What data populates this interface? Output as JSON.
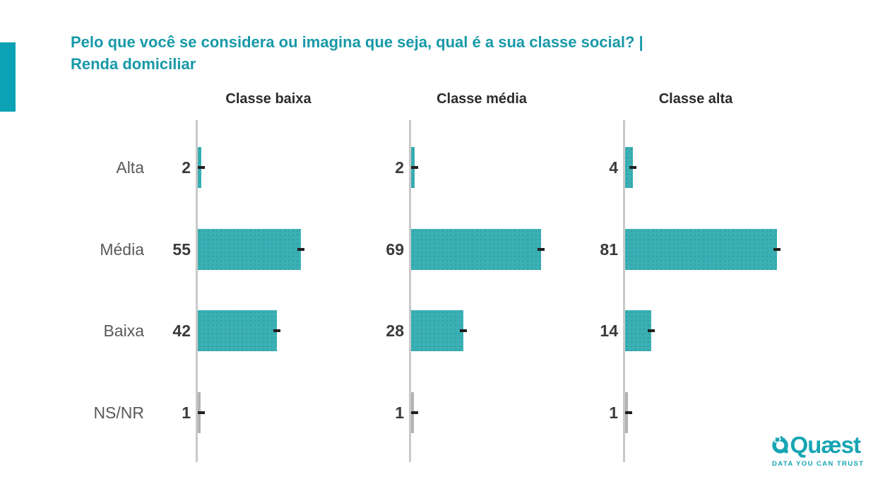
{
  "title": {
    "line1": "Pelo que você se considera ou imagina que seja, qual é a sua classe social? |",
    "line2": "Renda domiciliar"
  },
  "categories": [
    "Alta",
    "Média",
    "Baixa",
    "NS/NR"
  ],
  "panels": [
    {
      "header": "Classe baixa",
      "values": [
        2,
        55,
        42,
        1
      ]
    },
    {
      "header": "Classe média",
      "values": [
        2,
        69,
        28,
        1
      ]
    },
    {
      "header": "Classe alta",
      "values": [
        4,
        81,
        14,
        1
      ]
    }
  ],
  "chart_data": {
    "type": "bar",
    "orientation": "horizontal",
    "title": "Pelo que você se considera ou imagina que seja, qual é a sua classe social? | Renda domiciliar",
    "categories": [
      "Alta",
      "Média",
      "Baixa",
      "NS/NR"
    ],
    "series": [
      {
        "name": "Classe baixa",
        "values": [
          2,
          55,
          42,
          1
        ]
      },
      {
        "name": "Classe média",
        "values": [
          2,
          69,
          28,
          1
        ]
      },
      {
        "name": "Classe alta",
        "values": [
          4,
          81,
          14,
          1
        ]
      }
    ],
    "value_unit": "percent",
    "xlim": [
      0,
      100
    ],
    "grid": false,
    "legend_position": "none",
    "notes": "NS/NR bars drawn in gray; all other bars teal with end dash markers"
  },
  "logo": {
    "brand": "Quæst",
    "tagline": "DATA YOU CAN TRUST"
  },
  "colors": {
    "accent": "#0ba3b5",
    "title_text": "#1899a8",
    "bar": "#3ab0b4",
    "bar_ns": "#b3b3b3",
    "axis": "#c9c9c9",
    "marker": "#1f1f1f",
    "value_text": "#3a3a3a",
    "category_text": "#5a5a5a",
    "header_text": "#2b2b2b",
    "logo": "#16a5b3"
  }
}
